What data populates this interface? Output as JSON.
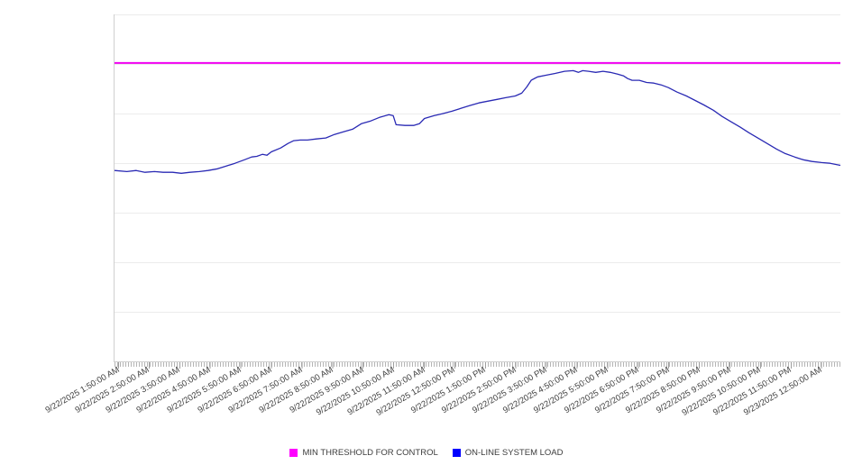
{
  "legend": {
    "items": [
      {
        "label": "MIN THRESHOLD FOR CONTROL",
        "color": "#ff00ff"
      },
      {
        "label": "ON-LINE SYSTEM LOAD",
        "color": "#0000ff"
      }
    ]
  },
  "chart_data": {
    "type": "line",
    "title": "",
    "grid": true,
    "legend_position": "bottom",
    "y_axis": {
      "tick_labels_visible": false,
      "ylim": [
        0,
        100
      ],
      "gridline_count": 8,
      "value_basis": "normalized 0-100 of plot height; no y-axis labels are shown in the chart"
    },
    "x_axis": {
      "tick_labels": [
        "9/22/2025 1:50:00 AM",
        "9/22/2025 2:50:00 AM",
        "9/22/2025 3:50:00 AM",
        "9/22/2025 4:50:00 AM",
        "9/22/2025 5:50:00 AM",
        "9/22/2025 6:50:00 AM",
        "9/22/2025 7:50:00 AM",
        "9/22/2025 8:50:00 AM",
        "9/22/2025 9:50:00 AM",
        "9/22/2025 10:50:00 AM",
        "9/22/2025 11:50:00 AM",
        "9/22/2025 12:50:00 PM",
        "9/22/2025 1:50:00 PM",
        "9/22/2025 2:50:00 PM",
        "9/22/2025 3:50:00 PM",
        "9/22/2025 4:50:00 PM",
        "9/22/2025 5:50:00 PM",
        "9/22/2025 6:50:00 PM",
        "9/22/2025 7:50:00 PM",
        "9/22/2025 8:50:00 PM",
        "9/22/2025 9:50:00 PM",
        "9/22/2025 10:50:00 PM",
        "9/22/2025 11:50:00 PM",
        "9/23/2025 12:50:00 AM"
      ]
    },
    "series": [
      {
        "name": "MIN THRESHOLD FOR CONTROL",
        "type": "threshold-line",
        "color": "#f000f0",
        "value": 86.0
      },
      {
        "name": "ON-LINE SYSTEM LOAD",
        "type": "line",
        "color": "#2a2ab4",
        "points_t_v": [
          [
            0.0,
            55.0
          ],
          [
            0.017,
            54.7
          ],
          [
            0.03,
            55.0
          ],
          [
            0.042,
            54.5
          ],
          [
            0.055,
            54.7
          ],
          [
            0.067,
            54.5
          ],
          [
            0.08,
            54.5
          ],
          [
            0.092,
            54.2
          ],
          [
            0.104,
            54.5
          ],
          [
            0.117,
            54.7
          ],
          [
            0.129,
            55.0
          ],
          [
            0.142,
            55.5
          ],
          [
            0.154,
            56.3
          ],
          [
            0.166,
            57.1
          ],
          [
            0.179,
            58.1
          ],
          [
            0.189,
            58.9
          ],
          [
            0.196,
            59.1
          ],
          [
            0.204,
            59.7
          ],
          [
            0.21,
            59.4
          ],
          [
            0.216,
            60.4
          ],
          [
            0.229,
            61.5
          ],
          [
            0.239,
            62.8
          ],
          [
            0.247,
            63.6
          ],
          [
            0.256,
            63.8
          ],
          [
            0.266,
            63.8
          ],
          [
            0.278,
            64.1
          ],
          [
            0.291,
            64.4
          ],
          [
            0.303,
            65.4
          ],
          [
            0.316,
            66.2
          ],
          [
            0.328,
            66.9
          ],
          [
            0.34,
            68.5
          ],
          [
            0.353,
            69.3
          ],
          [
            0.365,
            70.3
          ],
          [
            0.378,
            71.1
          ],
          [
            0.384,
            70.8
          ],
          [
            0.388,
            68.2
          ],
          [
            0.4,
            68.0
          ],
          [
            0.412,
            68.0
          ],
          [
            0.42,
            68.5
          ],
          [
            0.427,
            70.0
          ],
          [
            0.44,
            70.8
          ],
          [
            0.452,
            71.4
          ],
          [
            0.465,
            72.1
          ],
          [
            0.477,
            72.9
          ],
          [
            0.489,
            73.7
          ],
          [
            0.502,
            74.5
          ],
          [
            0.514,
            75.0
          ],
          [
            0.527,
            75.5
          ],
          [
            0.539,
            76.0
          ],
          [
            0.552,
            76.5
          ],
          [
            0.561,
            77.3
          ],
          [
            0.568,
            79.1
          ],
          [
            0.574,
            81.0
          ],
          [
            0.58,
            81.7
          ],
          [
            0.583,
            82.0
          ],
          [
            0.595,
            82.5
          ],
          [
            0.607,
            83.0
          ],
          [
            0.62,
            83.6
          ],
          [
            0.632,
            83.8
          ],
          [
            0.639,
            83.3
          ],
          [
            0.645,
            83.8
          ],
          [
            0.653,
            83.6
          ],
          [
            0.663,
            83.3
          ],
          [
            0.673,
            83.6
          ],
          [
            0.683,
            83.3
          ],
          [
            0.693,
            82.8
          ],
          [
            0.701,
            82.3
          ],
          [
            0.707,
            81.5
          ],
          [
            0.713,
            81.0
          ],
          [
            0.723,
            81.0
          ],
          [
            0.733,
            80.4
          ],
          [
            0.743,
            80.2
          ],
          [
            0.753,
            79.7
          ],
          [
            0.763,
            78.9
          ],
          [
            0.775,
            77.6
          ],
          [
            0.788,
            76.5
          ],
          [
            0.8,
            75.2
          ],
          [
            0.812,
            73.9
          ],
          [
            0.825,
            72.4
          ],
          [
            0.837,
            70.6
          ],
          [
            0.85,
            69.0
          ],
          [
            0.862,
            67.5
          ],
          [
            0.874,
            65.9
          ],
          [
            0.887,
            64.3
          ],
          [
            0.899,
            62.8
          ],
          [
            0.912,
            61.2
          ],
          [
            0.924,
            59.9
          ],
          [
            0.937,
            58.9
          ],
          [
            0.949,
            58.1
          ],
          [
            0.961,
            57.6
          ],
          [
            0.974,
            57.3
          ],
          [
            0.986,
            57.1
          ],
          [
            1.0,
            56.5
          ]
        ]
      }
    ]
  }
}
